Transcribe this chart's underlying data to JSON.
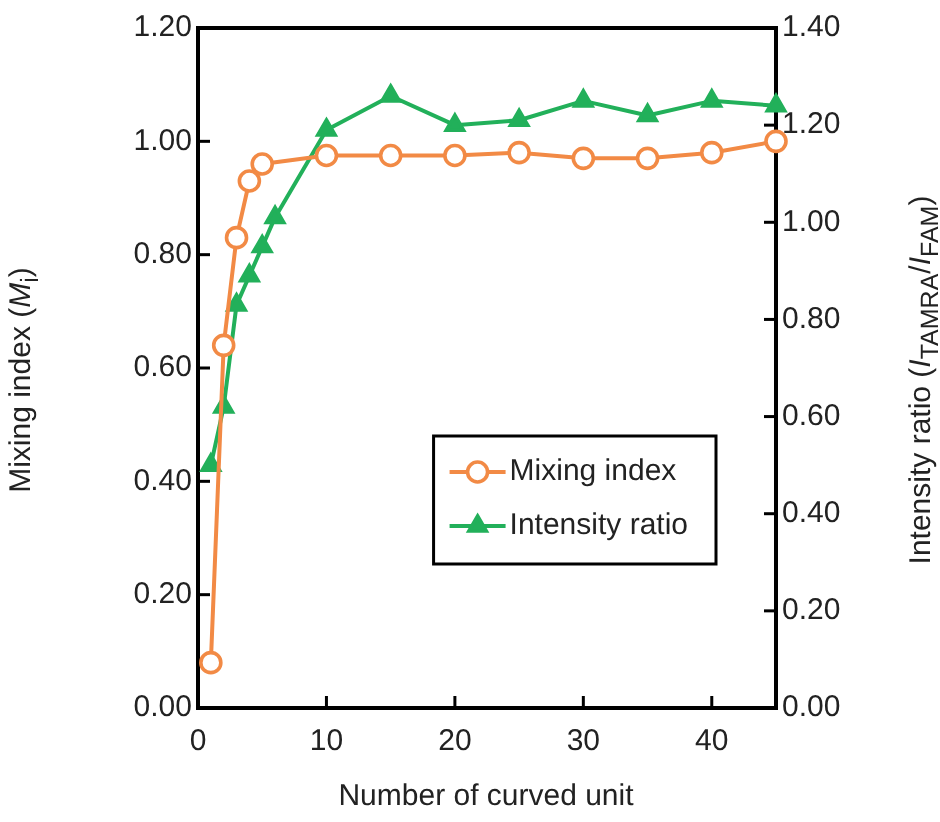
{
  "chart_data": {
    "type": "line",
    "xlabel": "Number of curved unit",
    "ylabel": "Mixing index (M$_{i}$)",
    "y2label": "Intensity ratio (I$_{TAMRA}$/I$_{FAM}$)",
    "xlim": [
      0,
      45
    ],
    "xticks": [
      0,
      10,
      20,
      30,
      40
    ],
    "ylim": [
      0,
      1.2
    ],
    "yticks": [
      {
        "value": 0,
        "label": "0.00"
      },
      {
        "value": 0.2,
        "label": "0.20"
      },
      {
        "value": 0.4,
        "label": "0.40"
      },
      {
        "value": 0.6,
        "label": "0.60"
      },
      {
        "value": 0.8,
        "label": "0.80"
      },
      {
        "value": 1,
        "label": "1.00"
      },
      {
        "value": 1.2,
        "label": "1.20"
      }
    ],
    "y2lim": [
      0,
      1.4
    ],
    "y2ticks": [
      {
        "value": 0,
        "label": "0.00"
      },
      {
        "value": 0.2,
        "label": "0.20"
      },
      {
        "value": 0.4,
        "label": "0.40"
      },
      {
        "value": 0.6,
        "label": "0.60"
      },
      {
        "value": 0.8,
        "label": "0.80"
      },
      {
        "value": 1,
        "label": "1.00"
      },
      {
        "value": 1.2,
        "label": "1.20"
      },
      {
        "value": 1.4,
        "label": "1.40"
      }
    ],
    "grid": false,
    "legend": "right",
    "line_style": "solid",
    "series": [
      {
        "name": "Mixing index",
        "color": "#f28a45",
        "marker": "circle",
        "x": [
          1,
          2,
          3,
          4,
          5,
          10,
          15,
          20,
          25,
          30,
          35,
          40,
          45
        ],
        "values": [
          0.08,
          0.64,
          0.83,
          0.93,
          0.96,
          0.975,
          0.975,
          0.975,
          0.98,
          0.97,
          0.97,
          0.98,
          1.0
        ]
      },
      {
        "name": "Intensity ratio",
        "color": "#22b05a",
        "marker": "triangle",
        "axis": "y2",
        "x": [
          1,
          2,
          3,
          4,
          5,
          6,
          10,
          15,
          20,
          25,
          30,
          35,
          40,
          45
        ],
        "values": [
          0.5,
          0.62,
          0.83,
          0.89,
          0.95,
          1.01,
          1.19,
          1.26,
          1.2,
          1.21,
          1.25,
          1.22,
          1.25,
          1.24
        ]
      }
    ]
  }
}
